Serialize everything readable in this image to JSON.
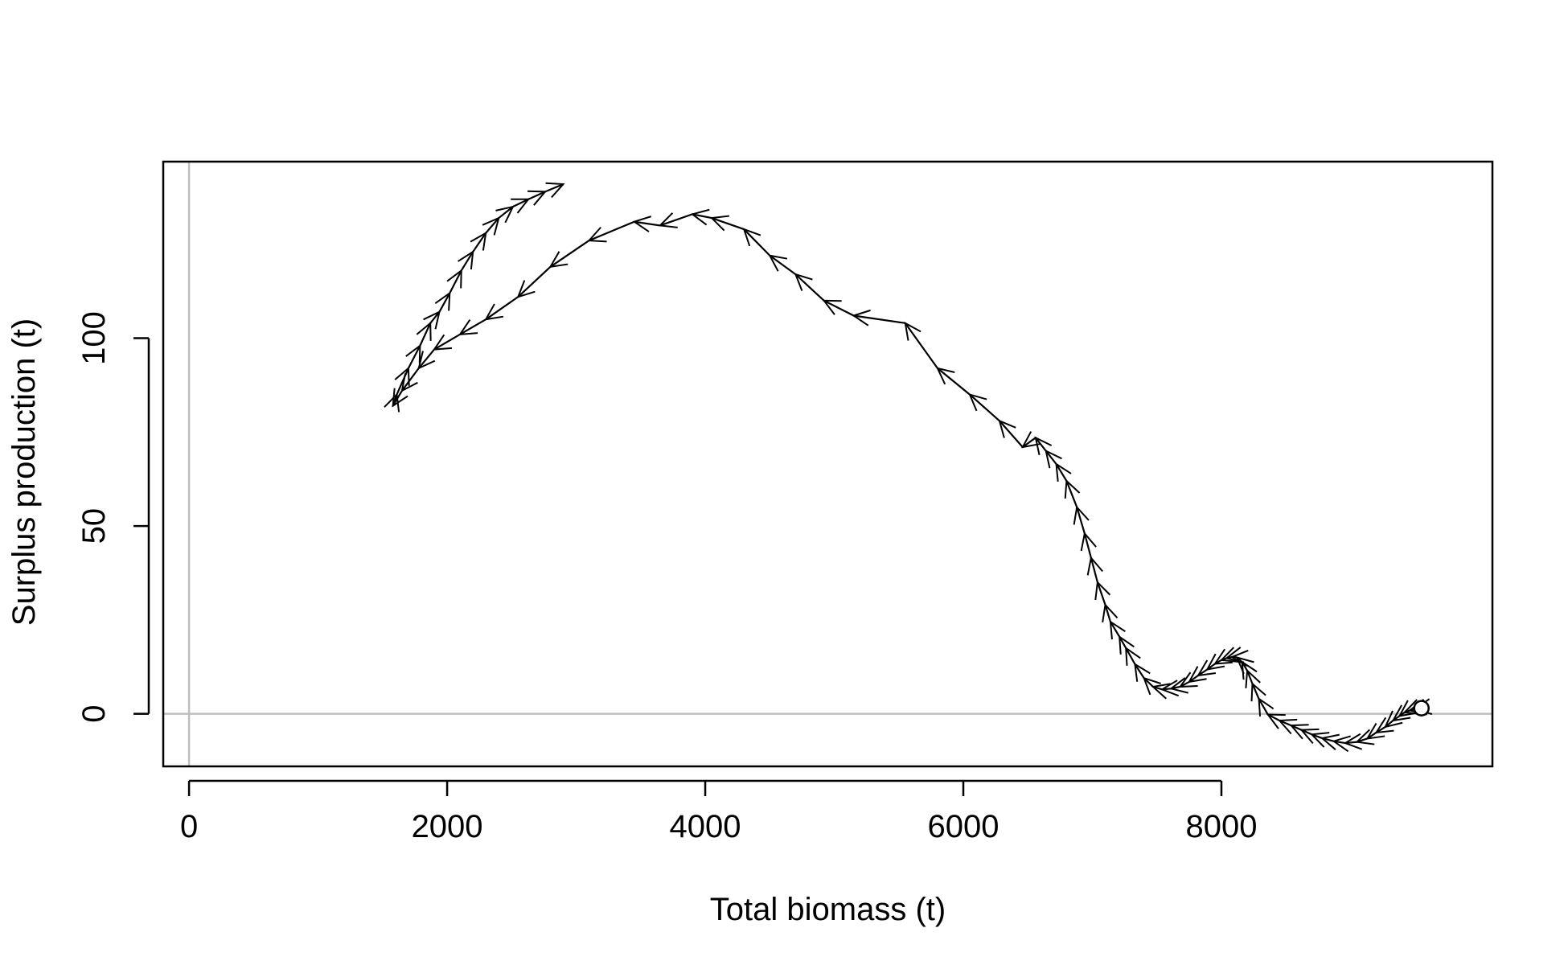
{
  "chart_data": {
    "type": "line",
    "title": "",
    "xlabel": "Total biomass (t)",
    "ylabel": "Surplus production (t)",
    "xlim": [
      -200,
      10100
    ],
    "ylim": [
      -14,
      147
    ],
    "x_ticks": [
      0,
      2000,
      4000,
      6000,
      8000
    ],
    "x_tick_labels": [
      "0",
      "2000",
      "4000",
      "6000",
      "8000"
    ],
    "y_ticks": [
      0,
      50,
      100
    ],
    "y_tick_labels": [
      "0",
      "50",
      "100"
    ],
    "reference_lines": {
      "x": 0,
      "y": 0,
      "color": "#bebebe"
    },
    "grid": false,
    "legend": "none",
    "line_color": "#000000",
    "start_marker": "open-circle",
    "arrow_direction": "start-to-end",
    "series": [
      {
        "x": [
          9550,
          9500,
          9460,
          9420,
          9380,
          9330,
          9270,
          9200,
          9130,
          9050,
          8960,
          8870,
          8780,
          8700,
          8620,
          8540,
          8450,
          8360,
          8290,
          8240,
          8200,
          8160,
          8120,
          8080,
          8040,
          8000,
          7950,
          7890,
          7820,
          7750,
          7680,
          7610,
          7540,
          7470,
          7400,
          7330,
          7260,
          7210,
          7140,
          7100,
          7040,
          6990,
          6940,
          6880,
          6800,
          6720,
          6640,
          6560,
          6460,
          6280,
          6050,
          5800,
          5550,
          5150,
          4920,
          4700,
          4500,
          4300,
          4050,
          3900,
          3650,
          3450,
          3100,
          2800,
          2550,
          2300,
          2100,
          1900,
          1780,
          1650,
          1580,
          1610,
          1700,
          1790,
          1870,
          1940,
          2020,
          2110,
          2200,
          2300,
          2400,
          2510,
          2630,
          2760,
          2900
        ],
        "y": [
          1.5,
          1.2,
          0.9,
          0.4,
          -0.6,
          -1.8,
          -3.5,
          -5,
          -6.6,
          -7.5,
          -7.8,
          -7.3,
          -6.5,
          -5.5,
          -4.3,
          -3.1,
          -1.8,
          -0.2,
          4,
          8,
          11.5,
          13.8,
          15,
          15.1,
          14.8,
          14.3,
          13.3,
          11.8,
          10.2,
          8.5,
          7.2,
          6.7,
          6.5,
          7.2,
          9.5,
          13.2,
          17.5,
          20.5,
          24.5,
          29,
          35,
          41.5,
          48,
          55,
          62,
          66.5,
          70,
          73.5,
          71,
          78,
          85,
          92,
          104,
          106,
          110,
          117,
          122,
          129,
          132,
          133,
          130,
          131,
          126,
          119,
          111,
          105,
          101,
          97,
          92,
          86,
          82,
          85,
          92,
          98,
          104,
          107,
          112,
          118,
          123,
          128,
          132,
          135,
          137,
          139,
          141
        ]
      }
    ]
  }
}
